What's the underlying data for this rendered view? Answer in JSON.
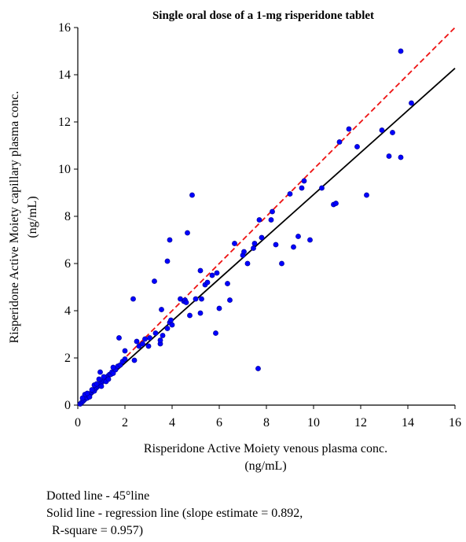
{
  "chart_data": {
    "type": "scatter",
    "title": "Single oral dose of a 1-mg risperidone tablet",
    "xlabel": [
      "Risperidone Active Moiety venous plasma conc.",
      "(ng/mL)"
    ],
    "ylabel": [
      "Risperidone Active Moiety capillary plasma conc.",
      "(ng/mL)"
    ],
    "xlim": [
      0,
      16
    ],
    "ylim": [
      0,
      16
    ],
    "xticks": [
      0,
      2,
      4,
      6,
      8,
      10,
      12,
      14,
      16
    ],
    "yticks": [
      0,
      2,
      4,
      6,
      8,
      10,
      12,
      14,
      16
    ],
    "grid": false,
    "point_color": "#0000ff",
    "reference_lines": [
      {
        "kind": "45-degree",
        "style": "dashed",
        "color": "#ee1111",
        "slope": 1,
        "intercept": 0,
        "x": [
          0,
          16
        ]
      },
      {
        "kind": "regression",
        "style": "solid",
        "color": "#000000",
        "slope": 0.892,
        "intercept": 0,
        "x": [
          0,
          16
        ]
      }
    ],
    "points": [
      [
        0.1,
        0.05
      ],
      [
        0.15,
        0.1
      ],
      [
        0.2,
        0.15
      ],
      [
        0.25,
        0.2
      ],
      [
        0.3,
        0.25
      ],
      [
        0.35,
        0.3
      ],
      [
        0.4,
        0.3
      ],
      [
        0.45,
        0.4
      ],
      [
        0.5,
        0.45
      ],
      [
        0.55,
        0.5
      ],
      [
        0.6,
        0.55
      ],
      [
        0.65,
        0.6
      ],
      [
        0.7,
        0.6
      ],
      [
        0.75,
        0.7
      ],
      [
        0.8,
        0.75
      ],
      [
        0.85,
        0.8
      ],
      [
        0.9,
        0.85
      ],
      [
        0.95,
        0.9
      ],
      [
        1.0,
        0.95
      ],
      [
        1.05,
        1.0
      ],
      [
        1.1,
        1.05
      ],
      [
        1.15,
        1.1
      ],
      [
        1.2,
        1.15
      ],
      [
        1.25,
        1.2
      ],
      [
        1.3,
        1.25
      ],
      [
        1.35,
        1.3
      ],
      [
        1.4,
        1.3
      ],
      [
        1.45,
        1.4
      ],
      [
        1.5,
        1.35
      ],
      [
        1.6,
        1.5
      ],
      [
        1.7,
        1.65
      ],
      [
        1.8,
        1.7
      ],
      [
        1.9,
        1.85
      ],
      [
        2.0,
        1.95
      ],
      [
        0.3,
        0.45
      ],
      [
        0.5,
        0.35
      ],
      [
        0.7,
        0.85
      ],
      [
        0.9,
        1.1
      ],
      [
        1.0,
        0.8
      ],
      [
        1.2,
        1.0
      ],
      [
        0.4,
        0.5
      ],
      [
        0.6,
        0.65
      ],
      [
        0.8,
        0.9
      ],
      [
        1.1,
        1.2
      ],
      [
        1.3,
        1.1
      ],
      [
        1.5,
        1.6
      ],
      [
        0.95,
        1.4
      ],
      [
        0.2,
        0.3
      ],
      [
        1.75,
        2.85
      ],
      [
        2.0,
        2.3
      ],
      [
        2.35,
        4.5
      ],
      [
        2.4,
        1.9
      ],
      [
        2.5,
        2.7
      ],
      [
        2.6,
        2.5
      ],
      [
        2.75,
        2.6
      ],
      [
        2.85,
        2.8
      ],
      [
        3.0,
        2.5
      ],
      [
        3.05,
        2.85
      ],
      [
        3.25,
        5.25
      ],
      [
        3.3,
        3.05
      ],
      [
        3.5,
        2.6
      ],
      [
        3.5,
        2.75
      ],
      [
        3.55,
        4.05
      ],
      [
        3.6,
        2.95
      ],
      [
        3.8,
        3.25
      ],
      [
        3.8,
        6.1
      ],
      [
        3.9,
        3.5
      ],
      [
        3.95,
        3.6
      ],
      [
        3.9,
        7.0
      ],
      [
        4.0,
        3.4
      ],
      [
        4.35,
        4.5
      ],
      [
        4.5,
        4.4
      ],
      [
        4.55,
        4.45
      ],
      [
        4.6,
        4.35
      ],
      [
        4.65,
        7.3
      ],
      [
        4.75,
        3.8
      ],
      [
        4.85,
        8.9
      ],
      [
        5.0,
        4.5
      ],
      [
        5.2,
        3.9
      ],
      [
        5.25,
        4.5
      ],
      [
        5.2,
        5.7
      ],
      [
        5.4,
        5.1
      ],
      [
        5.5,
        5.2
      ],
      [
        5.7,
        5.5
      ],
      [
        5.9,
        5.6
      ],
      [
        5.85,
        3.05
      ],
      [
        6.0,
        4.1
      ],
      [
        6.35,
        5.15
      ],
      [
        6.45,
        4.45
      ],
      [
        6.65,
        6.85
      ],
      [
        7.0,
        6.35
      ],
      [
        7.05,
        6.5
      ],
      [
        7.2,
        6.0
      ],
      [
        7.45,
        6.65
      ],
      [
        7.5,
        6.85
      ],
      [
        7.7,
        7.85
      ],
      [
        7.8,
        7.1
      ],
      [
        7.65,
        1.55
      ],
      [
        8.2,
        7.85
      ],
      [
        8.25,
        8.2
      ],
      [
        8.4,
        6.8
      ],
      [
        8.65,
        6.0
      ],
      [
        9.0,
        8.95
      ],
      [
        9.15,
        6.7
      ],
      [
        9.35,
        7.15
      ],
      [
        9.5,
        9.2
      ],
      [
        9.6,
        9.5
      ],
      [
        9.85,
        7.0
      ],
      [
        10.35,
        9.2
      ],
      [
        10.85,
        8.5
      ],
      [
        10.95,
        8.55
      ],
      [
        11.1,
        11.15
      ],
      [
        11.5,
        11.7
      ],
      [
        11.85,
        10.95
      ],
      [
        12.25,
        8.9
      ],
      [
        12.9,
        11.65
      ],
      [
        13.2,
        10.55
      ],
      [
        13.35,
        11.55
      ],
      [
        13.7,
        15.0
      ],
      [
        13.7,
        10.5
      ],
      [
        14.15,
        12.8
      ]
    ],
    "notes": [
      "Dotted line - 45°line",
      "Solid line - regression line (slope estimate = 0.892,",
      "R-square = 0.957)"
    ]
  }
}
